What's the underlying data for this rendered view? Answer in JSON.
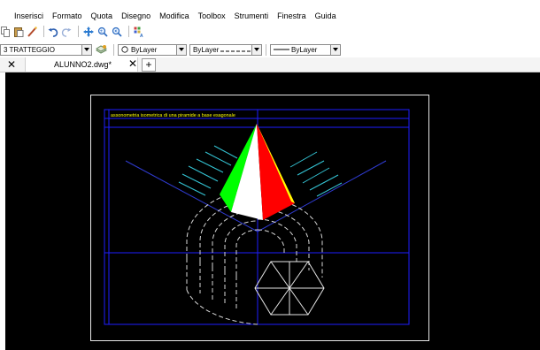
{
  "menu": {
    "items": [
      "Inserisci",
      "Formato",
      "Quota",
      "Disegno",
      "Modifica",
      "Toolbox",
      "Strumenti",
      "Finestra",
      "Guida"
    ]
  },
  "toolbar": {
    "icons": [
      "copy-icon",
      "paste-icon",
      "match-properties-icon",
      "undo-icon",
      "redo-icon",
      "pan-icon",
      "zoom-realtime-icon",
      "zoom-previous-icon",
      "properties-icon"
    ]
  },
  "properties_bar": {
    "layer_value": "3 TRATTEGGIO",
    "color_value": "ByLayer",
    "linetype_value": "ByLayer",
    "lineweight_value": "ByLayer"
  },
  "tabs": {
    "document_title": "ALUNNO2.dwg*",
    "close_symbol": "✕",
    "new_tab_symbol": "+"
  },
  "drawing": {
    "title_text": "assonometria isometrica di una piramide a base esagonale",
    "colors": {
      "background": "#000000",
      "frame": "#1e1eff",
      "axes": "#2f3bd0",
      "title": "#ffff00",
      "hatch": "#35c6d6",
      "hidden_lines": "#d8d8d8",
      "pyramid_green": "#00ff00",
      "pyramid_white": "#ffffff",
      "pyramid_red": "#ff0000"
    }
  }
}
